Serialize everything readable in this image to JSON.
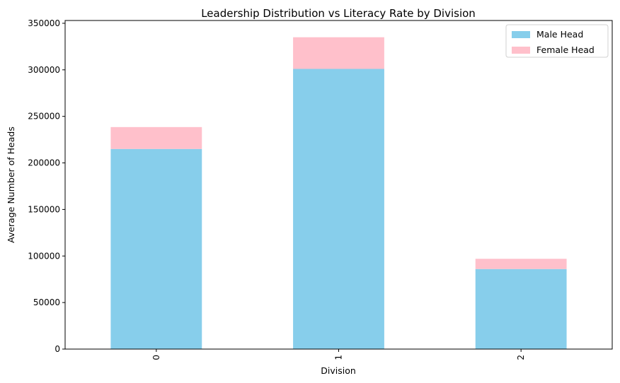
{
  "chart_data": {
    "type": "bar",
    "stacked": true,
    "title": "Leadership Distribution vs Literacy Rate by Division",
    "xlabel": "Division",
    "ylabel": "Average Number of Heads",
    "categories": [
      "0",
      "1",
      "2"
    ],
    "series": [
      {
        "name": "Male Head",
        "color": "#87CEEB",
        "values": [
          215000,
          301000,
          86000
        ]
      },
      {
        "name": "Female Head",
        "color": "#FFC0CB",
        "values": [
          23500,
          34000,
          11000
        ]
      }
    ],
    "ylim": [
      0,
      353000
    ],
    "yticks": [
      0,
      50000,
      100000,
      150000,
      200000,
      250000,
      300000,
      350000
    ],
    "ytick_labels": [
      "0",
      "50000",
      "100000",
      "150000",
      "200000",
      "250000",
      "300000",
      "350000"
    ],
    "xtick_rotation": "vertical",
    "legend_position": "top-right",
    "grid": false
  }
}
